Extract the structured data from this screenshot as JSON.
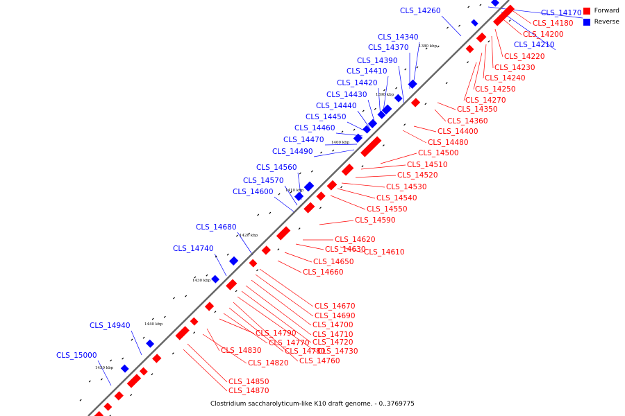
{
  "legend": [
    {
      "label": "Forward",
      "color": "#ff0000"
    },
    {
      "label": "Reverse",
      "color": "#0000ff"
    }
  ],
  "caption": "Clostridium saccharolyticum-like K10 draft genome. - 0..3769775",
  "kbp_marks": [
    "1380 kbp",
    "1390 kbp",
    "1400 kbp",
    "1410 kbp",
    "1420 kbp",
    "1430 kbp",
    "1440 kbp",
    "1450 kbp"
  ],
  "reverse_genes": [
    "CLS_14170",
    "CLS_14210",
    "CLS_14260",
    "CLS_14340",
    "CLS_14370",
    "CLS_14390",
    "CLS_14410",
    "CLS_14420",
    "CLS_14430",
    "CLS_14440",
    "CLS_14450",
    "CLS_14460",
    "CLS_14470",
    "CLS_14490",
    "CLS_14560",
    "CLS_14570",
    "CLS_14600",
    "CLS_14680",
    "CLS_14740",
    "CLS_14940",
    "CLS_15000"
  ],
  "forward_genes": [
    "CLS_14180",
    "CLS_14200",
    "CLS_14220",
    "CLS_14230",
    "CLS_14240",
    "CLS_14250",
    "CLS_14270",
    "CLS_14350",
    "CLS_14360",
    "CLS_14400",
    "CLS_14480",
    "CLS_14500",
    "CLS_14510",
    "CLS_14520",
    "CLS_14530",
    "CLS_14540",
    "CLS_14550",
    "CLS_14590",
    "CLS_14620",
    "CLS_14630",
    "CLS_14610",
    "CLS_14650",
    "CLS_14660",
    "CLS_14670",
    "CLS_14690",
    "CLS_14700",
    "CLS_14710",
    "CLS_14720",
    "CLS_14730",
    "CLS_14760",
    "CLS_14780",
    "CLS_14770",
    "CLS_14790",
    "CLS_14830",
    "CLS_14820",
    "CLS_14850",
    "CLS_14870"
  ]
}
